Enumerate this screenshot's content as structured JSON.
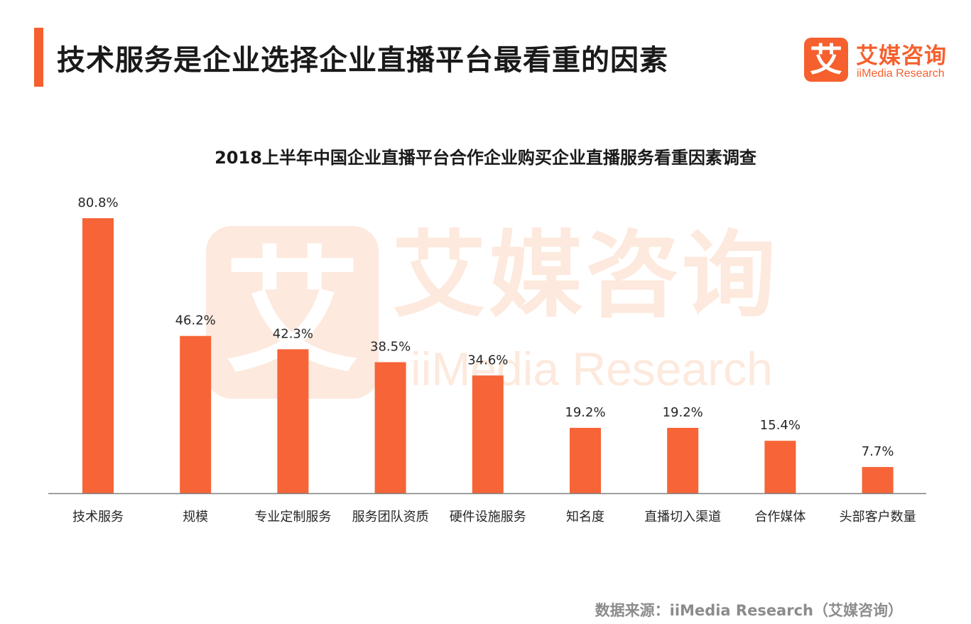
{
  "header": {
    "title": "技术服务是企业选择企业直播平台最看重的因素",
    "accent_color": "#f5602e"
  },
  "logo": {
    "icon_char": "艾",
    "name_cn": "艾媒咨询",
    "name_en": "iiMedia Research",
    "color": "#f5602e"
  },
  "watermark": {
    "icon_char": "艾",
    "name_cn": "艾媒咨询",
    "name_en": "iiMedia Research"
  },
  "chart_data": {
    "type": "bar",
    "title": "2018上半年中国企业直播平台合作企业购买企业直播服务看重因素调查",
    "categories": [
      "技术服务",
      "规模",
      "专业定制服务",
      "服务团队资质",
      "硬件设施服务",
      "知名度",
      "直播切入渠道",
      "合作媒体",
      "头部客户数量"
    ],
    "values": [
      80.8,
      46.2,
      42.3,
      38.5,
      34.6,
      19.2,
      19.2,
      15.4,
      7.7
    ],
    "value_labels": [
      "80.8%",
      "46.2%",
      "42.3%",
      "38.5%",
      "34.6%",
      "19.2%",
      "19.2%",
      "15.4%",
      "7.7%"
    ],
    "unit": "%",
    "ylim": [
      0,
      85
    ],
    "grid": false,
    "legend": "none",
    "bar_color": "#f66437",
    "axis_color": "#7f7f7f"
  },
  "footer": {
    "source": "数据来源：iiMedia Research（艾媒咨询）"
  }
}
